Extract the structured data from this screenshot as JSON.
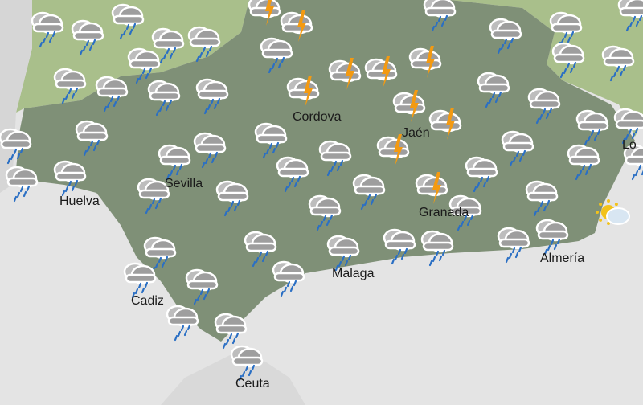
{
  "colors": {
    "sea": "#e4e4e4",
    "land_outside": "#a9bf8b",
    "region": "#7f9077",
    "africa": "#d9d9d9",
    "rain": "#2a6fc4",
    "bolt": "#f39a12",
    "sun": "#f2c21b"
  },
  "cities": [
    {
      "name": "Cordova"
    },
    {
      "name": "Jaén"
    },
    {
      "name": "Sevilla"
    },
    {
      "name": "Huelva"
    },
    {
      "name": "Granada"
    },
    {
      "name": "Almería"
    },
    {
      "name": "Malaga"
    },
    {
      "name": "Cadiz"
    },
    {
      "name": "Ceuta"
    },
    {
      "name": "Lo"
    }
  ],
  "icons": {
    "rain-cloud-icon": 53,
    "thunderstorm-icon": 10,
    "sun-behind-cloud-icon": 1
  }
}
